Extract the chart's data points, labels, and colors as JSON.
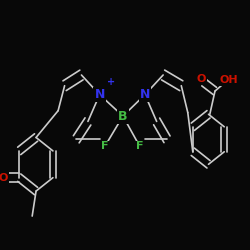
{
  "background_color": "#080808",
  "figure_size": [
    2.5,
    2.5
  ],
  "dpi": 100,
  "bond_color": "#cccccc",
  "bond_width": 1.2,
  "atom_colors": {
    "Np": "#3333ee",
    "N": "#3333ee",
    "B": "#44bb44",
    "F": "#44bb44",
    "O": "#cc1100",
    "OH": "#cc1100"
  }
}
